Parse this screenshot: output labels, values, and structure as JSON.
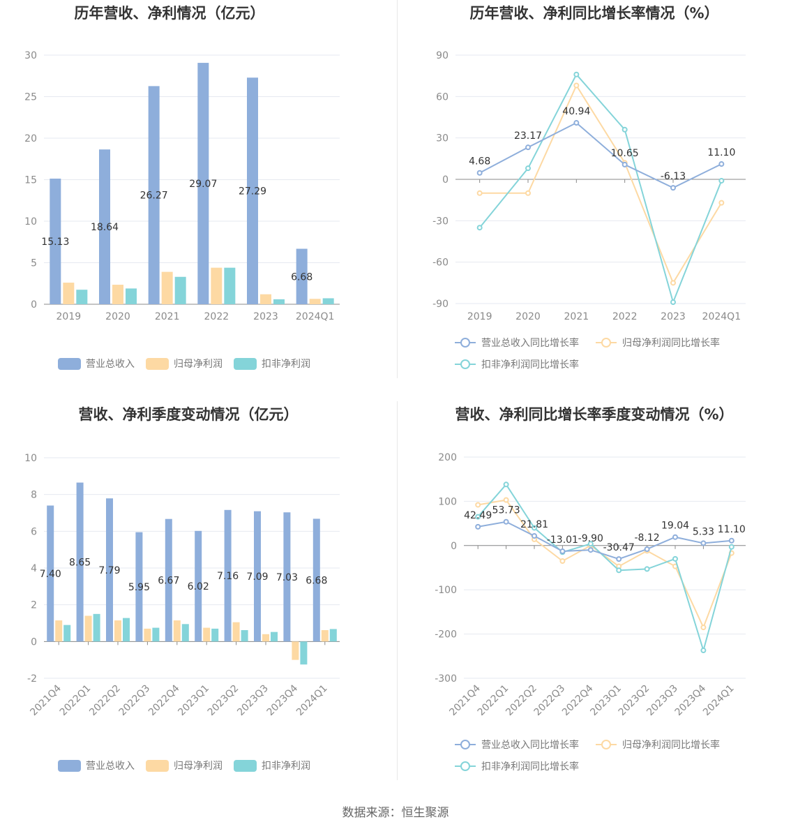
{
  "footer": "数据来源：恒生聚源",
  "charts": [
    {
      "type": "bar",
      "title": "历年营收、净利情况（亿元）",
      "categories": [
        "2019",
        "2020",
        "2021",
        "2022",
        "2023",
        "2024Q1"
      ],
      "yticks": [
        0,
        5,
        10,
        15,
        20,
        25,
        30
      ],
      "ylim": [
        0,
        30
      ],
      "series": [
        {
          "name": "营业总收入",
          "color": "#8eaedb",
          "values": [
            15.13,
            18.64,
            26.27,
            29.07,
            27.29,
            6.68
          ],
          "labels": [
            "15.13",
            "18.64",
            "26.27",
            "29.07",
            "27.29",
            "6.68"
          ]
        },
        {
          "name": "归母净利润",
          "color": "#fdd9a3",
          "values": [
            2.6,
            2.35,
            3.9,
            4.4,
            1.2,
            0.65
          ]
        },
        {
          "name": "扣非净利润",
          "color": "#84d4d9",
          "values": [
            1.75,
            1.9,
            3.3,
            4.4,
            0.6,
            0.72
          ]
        }
      ]
    },
    {
      "type": "line",
      "title": "历年营收、净利同比增长率情况（%）",
      "categories": [
        "2019",
        "2020",
        "2021",
        "2022",
        "2023",
        "2024Q1"
      ],
      "yticks": [
        -90,
        -60,
        -30,
        0,
        30,
        60,
        90
      ],
      "ylim": [
        -90,
        90
      ],
      "series": [
        {
          "name": "营业总收入同比增长率",
          "color": "#8eaedb",
          "values": [
            4.68,
            23.17,
            40.94,
            10.65,
            -6.13,
            11.1
          ],
          "labels": [
            "4.68",
            "23.17",
            "40.94",
            "10.65",
            "-6.13",
            "11.10"
          ]
        },
        {
          "name": "归母净利润同比增长率",
          "color": "#fdd9a3",
          "values": [
            -10,
            -10,
            68,
            12,
            -75,
            -17
          ]
        },
        {
          "name": "扣非净利润同比增长率",
          "color": "#84d4d9",
          "values": [
            -35,
            8,
            76,
            36,
            -89,
            -1
          ]
        }
      ]
    },
    {
      "type": "bar",
      "title": "营收、净利季度变动情况（亿元）",
      "categories": [
        "2021Q4",
        "2022Q1",
        "2022Q2",
        "2022Q3",
        "2022Q4",
        "2023Q1",
        "2023Q2",
        "2023Q3",
        "2023Q4",
        "2024Q1"
      ],
      "yticks": [
        -2,
        0,
        2,
        4,
        6,
        8,
        10
      ],
      "ylim": [
        -2,
        10
      ],
      "series": [
        {
          "name": "营业总收入",
          "color": "#8eaedb",
          "values": [
            7.4,
            8.65,
            7.79,
            5.95,
            6.67,
            6.02,
            7.16,
            7.09,
            7.03,
            6.68
          ],
          "labels": [
            "7.40",
            "8.65",
            "7.79",
            "5.95",
            "6.67",
            "6.02",
            "7.16",
            "7.09",
            "7.03",
            "6.68"
          ]
        },
        {
          "name": "归母净利润",
          "color": "#fdd9a3",
          "values": [
            1.15,
            1.4,
            1.15,
            0.7,
            1.15,
            0.75,
            1.05,
            0.4,
            -1.0,
            0.62
          ]
        },
        {
          "name": "扣非净利润",
          "color": "#84d4d9",
          "values": [
            0.9,
            1.5,
            1.28,
            0.75,
            0.95,
            0.7,
            0.62,
            0.52,
            -1.25,
            0.68
          ]
        }
      ]
    },
    {
      "type": "line",
      "title": "营收、净利同比增长率季度变动情况（%）",
      "categories": [
        "2021Q4",
        "2022Q1",
        "2022Q2",
        "2022Q3",
        "2022Q4",
        "2023Q1",
        "2023Q2",
        "2023Q3",
        "2023Q4",
        "2024Q1"
      ],
      "yticks": [
        -300,
        -200,
        -100,
        0,
        100,
        200
      ],
      "ylim": [
        -300,
        200
      ],
      "series": [
        {
          "name": "营业总收入同比增长率",
          "color": "#8eaedb",
          "values": [
            42.49,
            53.73,
            21.81,
            -13.01,
            -9.9,
            -30.47,
            -8.12,
            19.04,
            5.33,
            11.1
          ],
          "labels": [
            "42.49",
            "53.73",
            "21.81",
            "-13.01",
            "-9.90",
            "-30.47",
            "-8.12",
            "19.04",
            "5.33",
            "11.10"
          ]
        },
        {
          "name": "归母净利润同比增长率",
          "color": "#fdd9a3",
          "values": [
            92,
            103,
            14,
            -35,
            0,
            -47,
            -12,
            -47,
            -185,
            -17
          ]
        },
        {
          "name": "扣非净利润同比增长率",
          "color": "#84d4d9",
          "values": [
            65,
            138,
            40,
            -15,
            4,
            -56,
            -53,
            -30,
            -237,
            -3
          ]
        }
      ]
    }
  ]
}
